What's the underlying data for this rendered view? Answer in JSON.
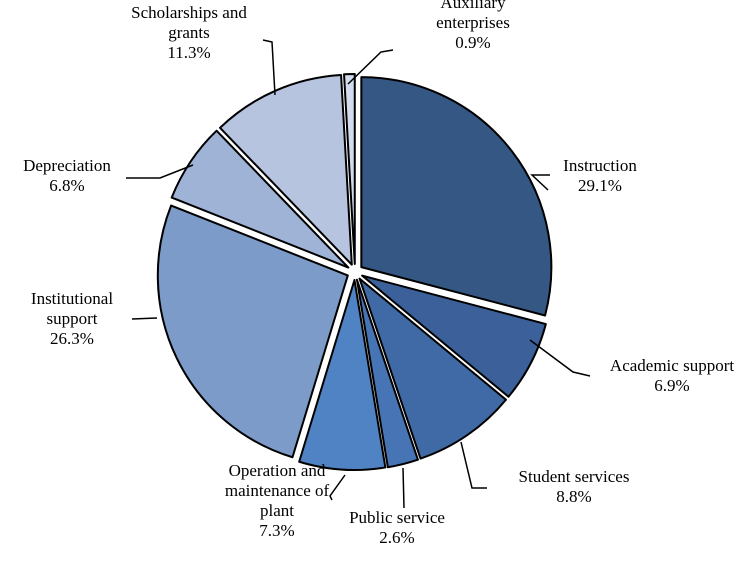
{
  "chart_data": {
    "type": "pie",
    "title": "",
    "slices": [
      {
        "label": [
          "Instruction"
        ],
        "value": 29.1,
        "value_label": "29.1%",
        "color": "#355783",
        "label_side": "right"
      },
      {
        "label": [
          "Academic support"
        ],
        "value": 6.9,
        "value_label": "6.9%",
        "color": "#3b609a",
        "label_side": "right"
      },
      {
        "label": [
          "Student services"
        ],
        "value": 8.8,
        "value_label": "8.8%",
        "color": "#406aa6",
        "label_side": "right"
      },
      {
        "label": [
          "Public service"
        ],
        "value": 2.6,
        "value_label": "2.6%",
        "color": "#4774b5",
        "label_side": "center"
      },
      {
        "label": [
          "Operation and",
          "maintenance of",
          "plant"
        ],
        "value": 7.3,
        "value_label": "7.3%",
        "color": "#4f83c4",
        "label_side": "center"
      },
      {
        "label": [
          "Institutional",
          "support"
        ],
        "value": 26.3,
        "value_label": "26.3%",
        "color": "#7c9bc9",
        "label_side": "left"
      },
      {
        "label": [
          "Depreciation"
        ],
        "value": 6.8,
        "value_label": "6.8%",
        "color": "#9fb3d6",
        "label_side": "left"
      },
      {
        "label": [
          "Scholarships and",
          "grants"
        ],
        "value": 11.3,
        "value_label": "11.3%",
        "color": "#b6c4e0",
        "label_side": "left"
      },
      {
        "label": [
          "Auxiliary",
          "enterprises"
        ],
        "value": 0.9,
        "value_label": "0.9%",
        "color": "#d3dcee",
        "label_side": "center"
      }
    ],
    "start_angle_deg": 0,
    "direction": "clockwise",
    "exploded": true,
    "legend": "none"
  }
}
